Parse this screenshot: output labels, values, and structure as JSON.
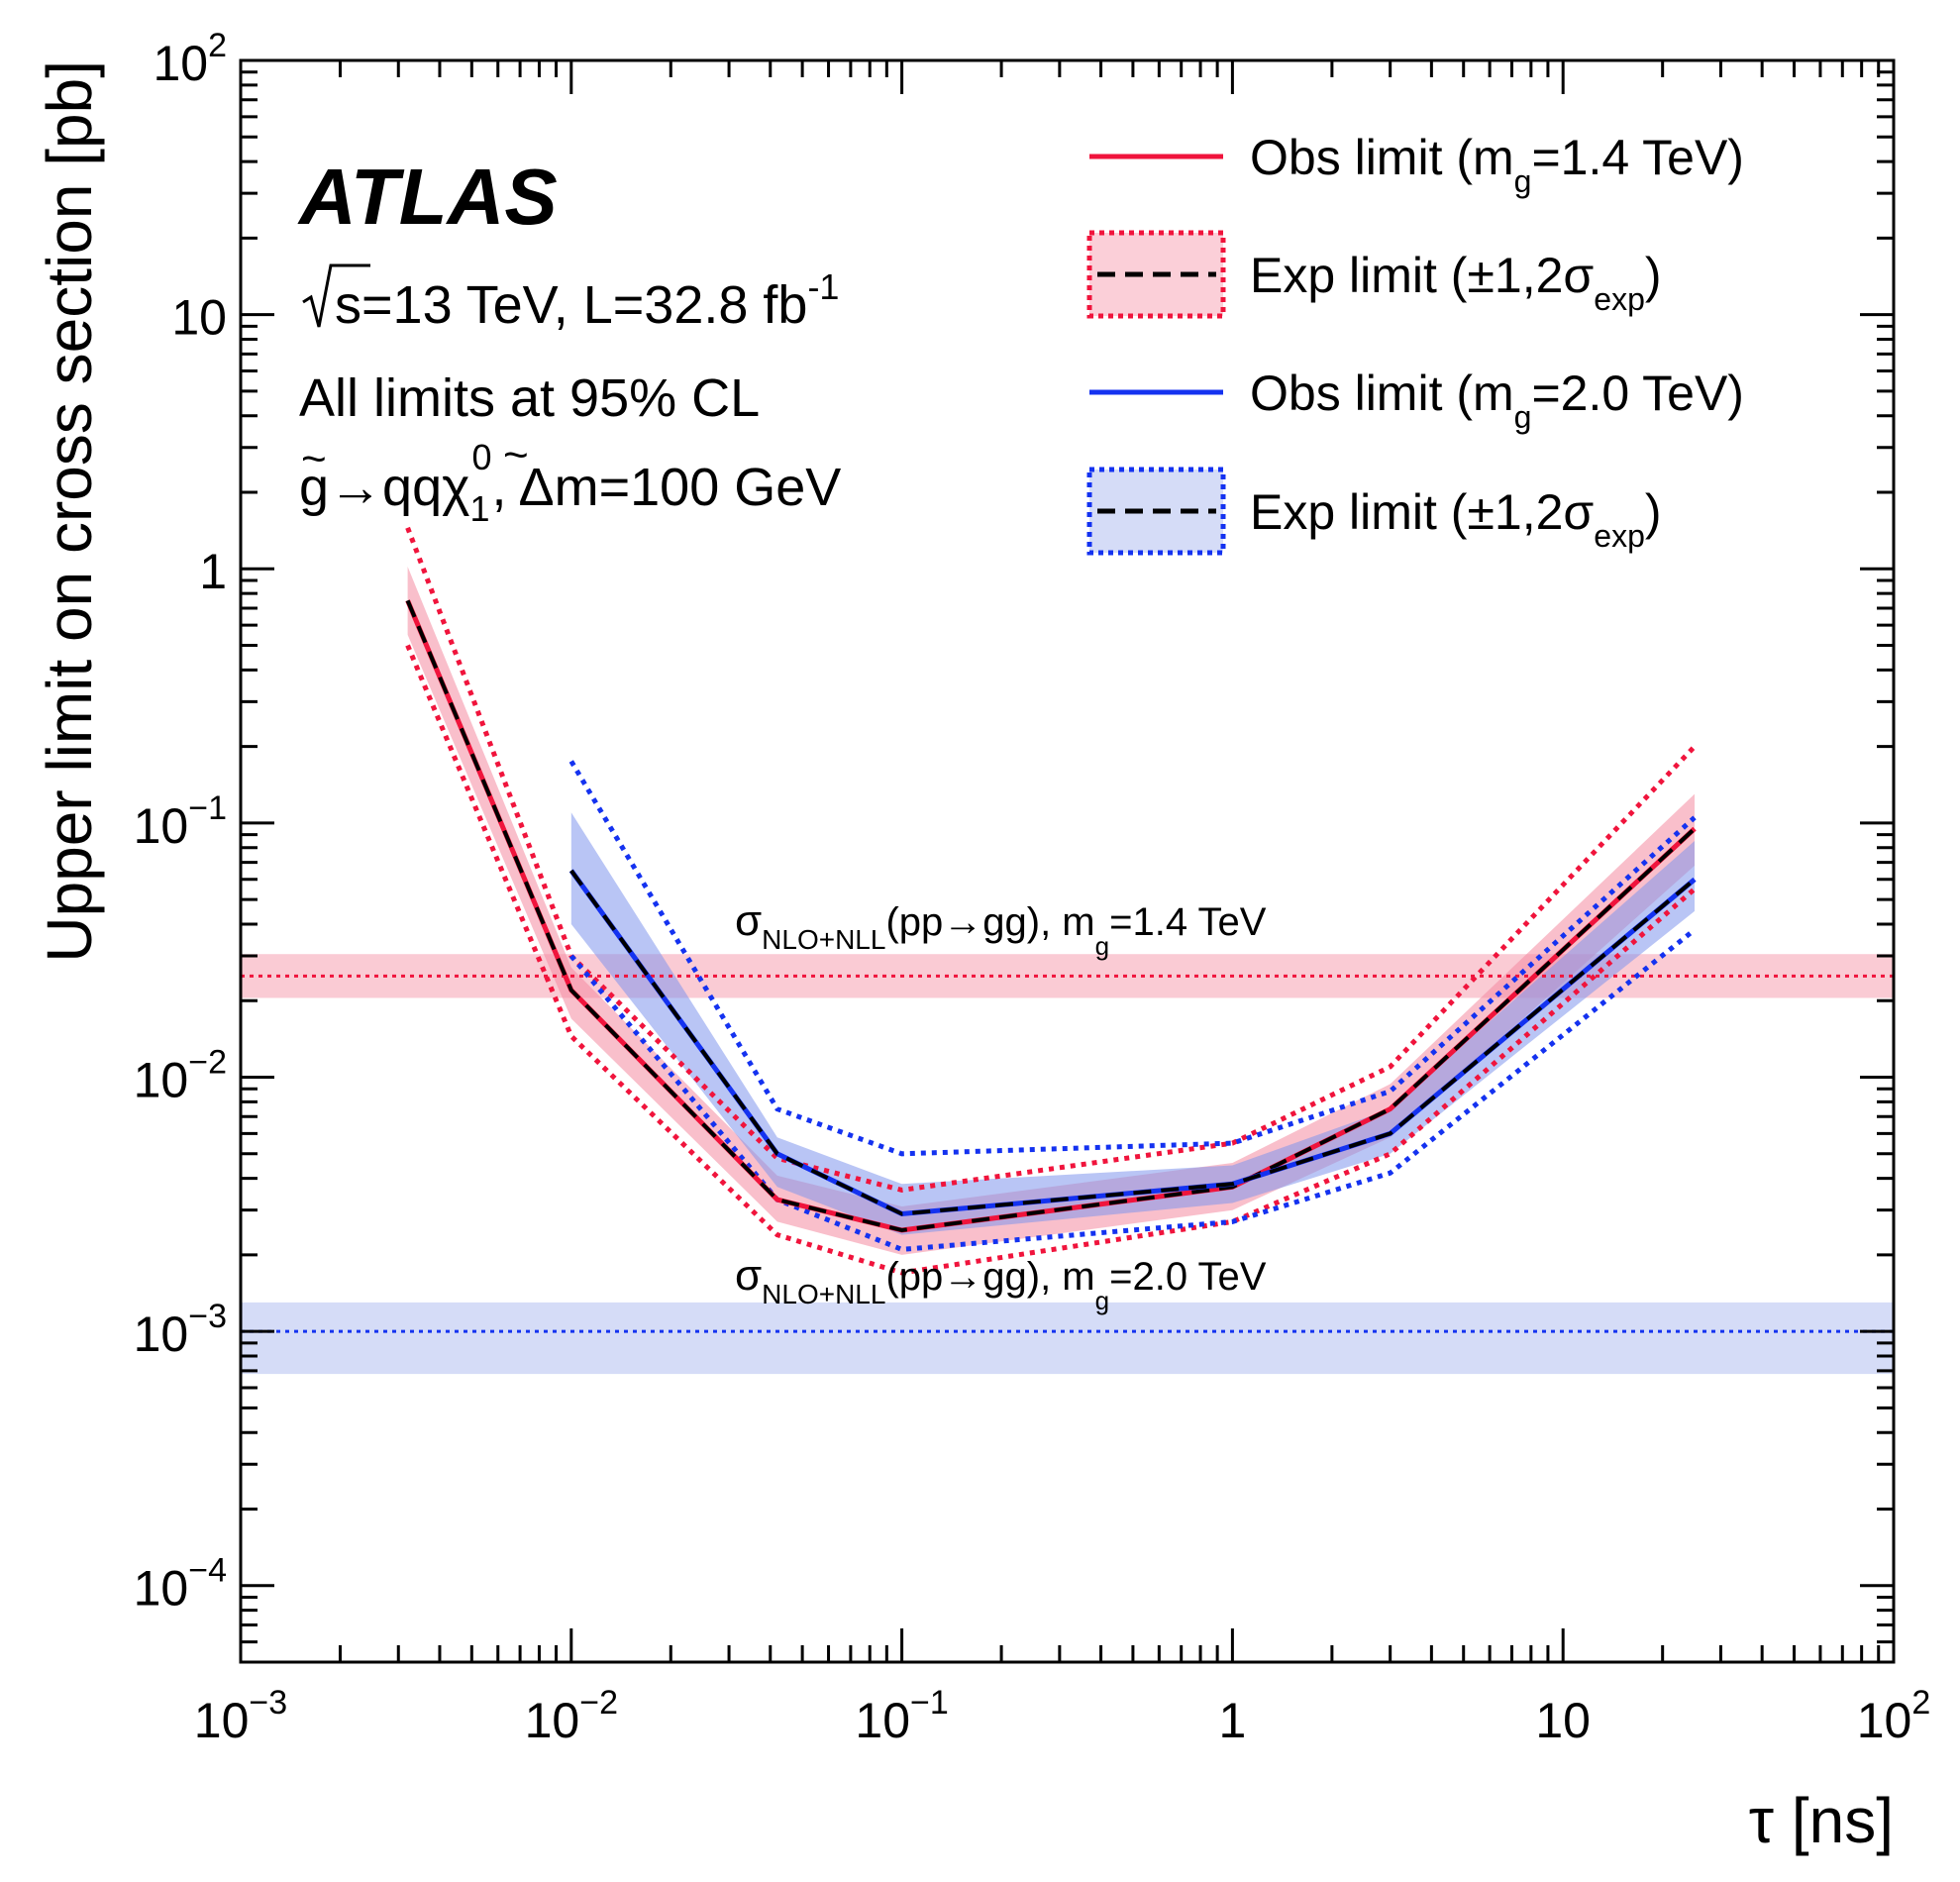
{
  "chart_data": {
    "type": "line",
    "xscale": "log",
    "yscale": "log",
    "xlim": [
      0.001,
      100
    ],
    "ylim": [
      5e-05,
      100
    ],
    "xlabel": "τ [ns]",
    "ylabel": "Upper limit on cross section [pb]",
    "xticks": [
      {
        "value": 0.001,
        "base": "10",
        "exp": "−3"
      },
      {
        "value": 0.01,
        "base": "10",
        "exp": "−2"
      },
      {
        "value": 0.1,
        "base": "10",
        "exp": "−1"
      },
      {
        "value": 1,
        "base": "1",
        "exp": ""
      },
      {
        "value": 10,
        "base": "10",
        "exp": ""
      },
      {
        "value": 100,
        "base": "10",
        "exp": "2"
      }
    ],
    "yticks": [
      {
        "value": 0.0001,
        "base": "10",
        "exp": "−4"
      },
      {
        "value": 0.001,
        "base": "10",
        "exp": "−3"
      },
      {
        "value": 0.01,
        "base": "10",
        "exp": "−2"
      },
      {
        "value": 0.1,
        "base": "10",
        "exp": "−1"
      },
      {
        "value": 1,
        "base": "1",
        "exp": ""
      },
      {
        "value": 10,
        "base": "10",
        "exp": ""
      },
      {
        "value": 100,
        "base": "10",
        "exp": "2"
      }
    ],
    "annotations": {
      "experiment": "ATLAS",
      "energy_prefix": "s=13 TeV, L=32.8 fb",
      "energy_sup": "-1",
      "cl_text": "All limits at 95% CL",
      "process_a": "g→qqχ",
      "process_sub": "1",
      "process_sup": "0",
      "process_b": ", Δm=100 GeV"
    },
    "series": [
      {
        "name": "Obs limit (m=1.4 TeV)",
        "color": "#f0143c",
        "x": [
          0.0032,
          0.01,
          0.042,
          0.1,
          1,
          3,
          25
        ],
        "obs": [
          0.75,
          0.022,
          0.0033,
          0.0025,
          0.0037,
          0.0075,
          0.095
        ],
        "exp": [
          0.75,
          0.022,
          0.0033,
          0.0025,
          0.0037,
          0.0075,
          0.095
        ],
        "band1_lo": [
          0.55,
          0.017,
          0.0027,
          0.002,
          0.003,
          0.0058,
          0.068
        ],
        "band1_hi": [
          1.02,
          0.027,
          0.0041,
          0.0031,
          0.0046,
          0.0094,
          0.13
        ],
        "band2_lo": [
          0.5,
          0.0145,
          0.0024,
          0.0017,
          0.0027,
          0.005,
          0.055
        ],
        "band2_hi": [
          1.45,
          0.03,
          0.0048,
          0.0036,
          0.0055,
          0.011,
          0.2
        ]
      },
      {
        "name": "Obs limit (m=2.0 TeV)",
        "color": "#1432f0",
        "x": [
          0.01,
          0.042,
          0.1,
          1,
          3,
          25
        ],
        "obs": [
          0.065,
          0.005,
          0.0029,
          0.0038,
          0.006,
          0.06
        ],
        "exp": [
          0.065,
          0.005,
          0.0029,
          0.0038,
          0.006,
          0.06
        ],
        "band1_lo": [
          0.04,
          0.0037,
          0.0024,
          0.0032,
          0.005,
          0.045
        ],
        "band1_hi": [
          0.11,
          0.0058,
          0.0038,
          0.0045,
          0.0075,
          0.085
        ],
        "band2_lo": [
          0.03,
          0.0033,
          0.0021,
          0.0027,
          0.0042,
          0.038
        ],
        "band2_hi": [
          0.175,
          0.0075,
          0.005,
          0.0055,
          0.0088,
          0.105
        ]
      }
    ],
    "theory_lines": [
      {
        "label_sigma": "σ",
        "label_sub": "NLO+NLL",
        "label_mid": "(pp→gg), m",
        "label_sub2": "g",
        "label_end": "=1.4 TeV",
        "value": 0.025,
        "band": [
          0.0205,
          0.0305
        ],
        "color": "#f0143c"
      },
      {
        "label_sigma": "σ",
        "label_sub": "NLO+NLL",
        "label_mid": "(pp→gg), m",
        "label_sub2": "g",
        "label_end": "=2.0 TeV",
        "value": 0.001,
        "band": [
          0.00068,
          0.0013
        ],
        "color": "#1432f0"
      }
    ],
    "legend": {
      "position": "top-right",
      "entries": [
        {
          "prefix": "Obs limit (m",
          "sub": "g",
          "suffix": "=1.4 TeV)"
        },
        {
          "prefix": "Exp limit (±1,2σ",
          "sub": "exp",
          "suffix": ")"
        },
        {
          "prefix": "Obs limit (m",
          "sub": "g",
          "suffix": "=2.0 TeV)"
        },
        {
          "prefix": "Exp limit (±1,2σ",
          "sub": "exp",
          "suffix": ")"
        }
      ]
    }
  }
}
